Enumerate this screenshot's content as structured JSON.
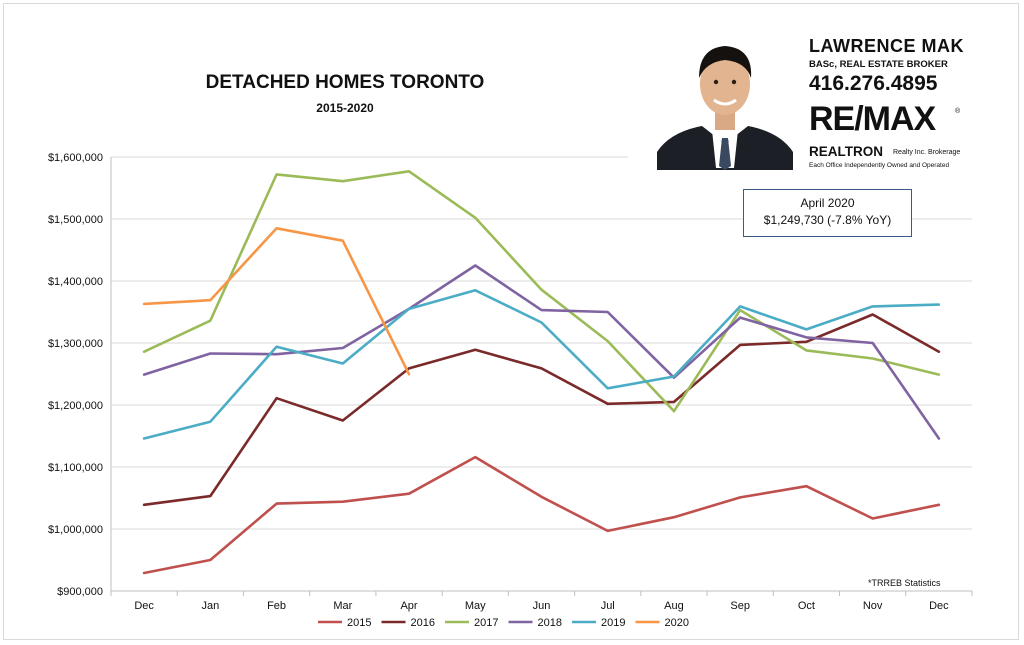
{
  "title": "DETACHED HOMES TORONTO",
  "subtitle": "2015-2020",
  "agent": {
    "name": "LAWRENCE MAK",
    "credentials": "BASc, REAL ESTATE BROKER",
    "phone": "416.276.4895",
    "brand": "RE/MAX",
    "brand_reg": "®",
    "brokerage": "REALTRON",
    "brokerage_suffix": "Realty Inc. Brokerage",
    "office_note": "Each Office Independently Owned and Operated",
    "photo_icon": "agent-portrait"
  },
  "callout": {
    "line1": "April 2020",
    "line2": "$1,249,730  (-7.8% YoY)"
  },
  "source_note": "*TRREB Statistics",
  "chart_data": {
    "type": "line",
    "categories": [
      "Dec",
      "Jan",
      "Feb",
      "Mar",
      "Apr",
      "May",
      "Jun",
      "Jul",
      "Aug",
      "Sep",
      "Oct",
      "Nov",
      "Dec"
    ],
    "y_ticks": [
      "$900,000",
      "$1,000,000",
      "$1,100,000",
      "$1,200,000",
      "$1,300,000",
      "$1,400,000",
      "$1,500,000",
      "$1,600,000"
    ],
    "ylim": [
      900000,
      1600000
    ],
    "grid": "horizontal",
    "legend": "bottom",
    "series": [
      {
        "name": "2015",
        "color": "#c0504d",
        "values": [
          929000,
          950000,
          1041000,
          1044000,
          1057000,
          1116000,
          1052000,
          997000,
          1019000,
          1051000,
          1069000,
          1017000,
          1039000
        ]
      },
      {
        "name": "2016",
        "color": "#7b2a2a",
        "values": [
          1039000,
          1053000,
          1211000,
          1175000,
          1259000,
          1289000,
          1259000,
          1202000,
          1205000,
          1297000,
          1302000,
          1346000,
          1286000
        ]
      },
      {
        "name": "2017",
        "color": "#9bbb59",
        "values": [
          1286000,
          1336000,
          1572000,
          1561000,
          1577000,
          1502000,
          1386000,
          1303000,
          1190000,
          1353000,
          1288000,
          1275000,
          1249000
        ]
      },
      {
        "name": "2018",
        "color": "#8064a2",
        "values": [
          1249000,
          1283000,
          1282000,
          1292000,
          1355000,
          1425000,
          1353000,
          1350000,
          1244000,
          1341000,
          1309000,
          1300000,
          1146000
        ]
      },
      {
        "name": "2019",
        "color": "#4bacc6",
        "values": [
          1146000,
          1173000,
          1294000,
          1267000,
          1355000,
          1385000,
          1333000,
          1227000,
          1246000,
          1359000,
          1322000,
          1359000,
          1362000
        ]
      },
      {
        "name": "2020",
        "color": "#f79646",
        "values": [
          1363000,
          1369000,
          1485000,
          1465000,
          1249730,
          null,
          null,
          null,
          null,
          null,
          null,
          null,
          null
        ]
      }
    ]
  }
}
